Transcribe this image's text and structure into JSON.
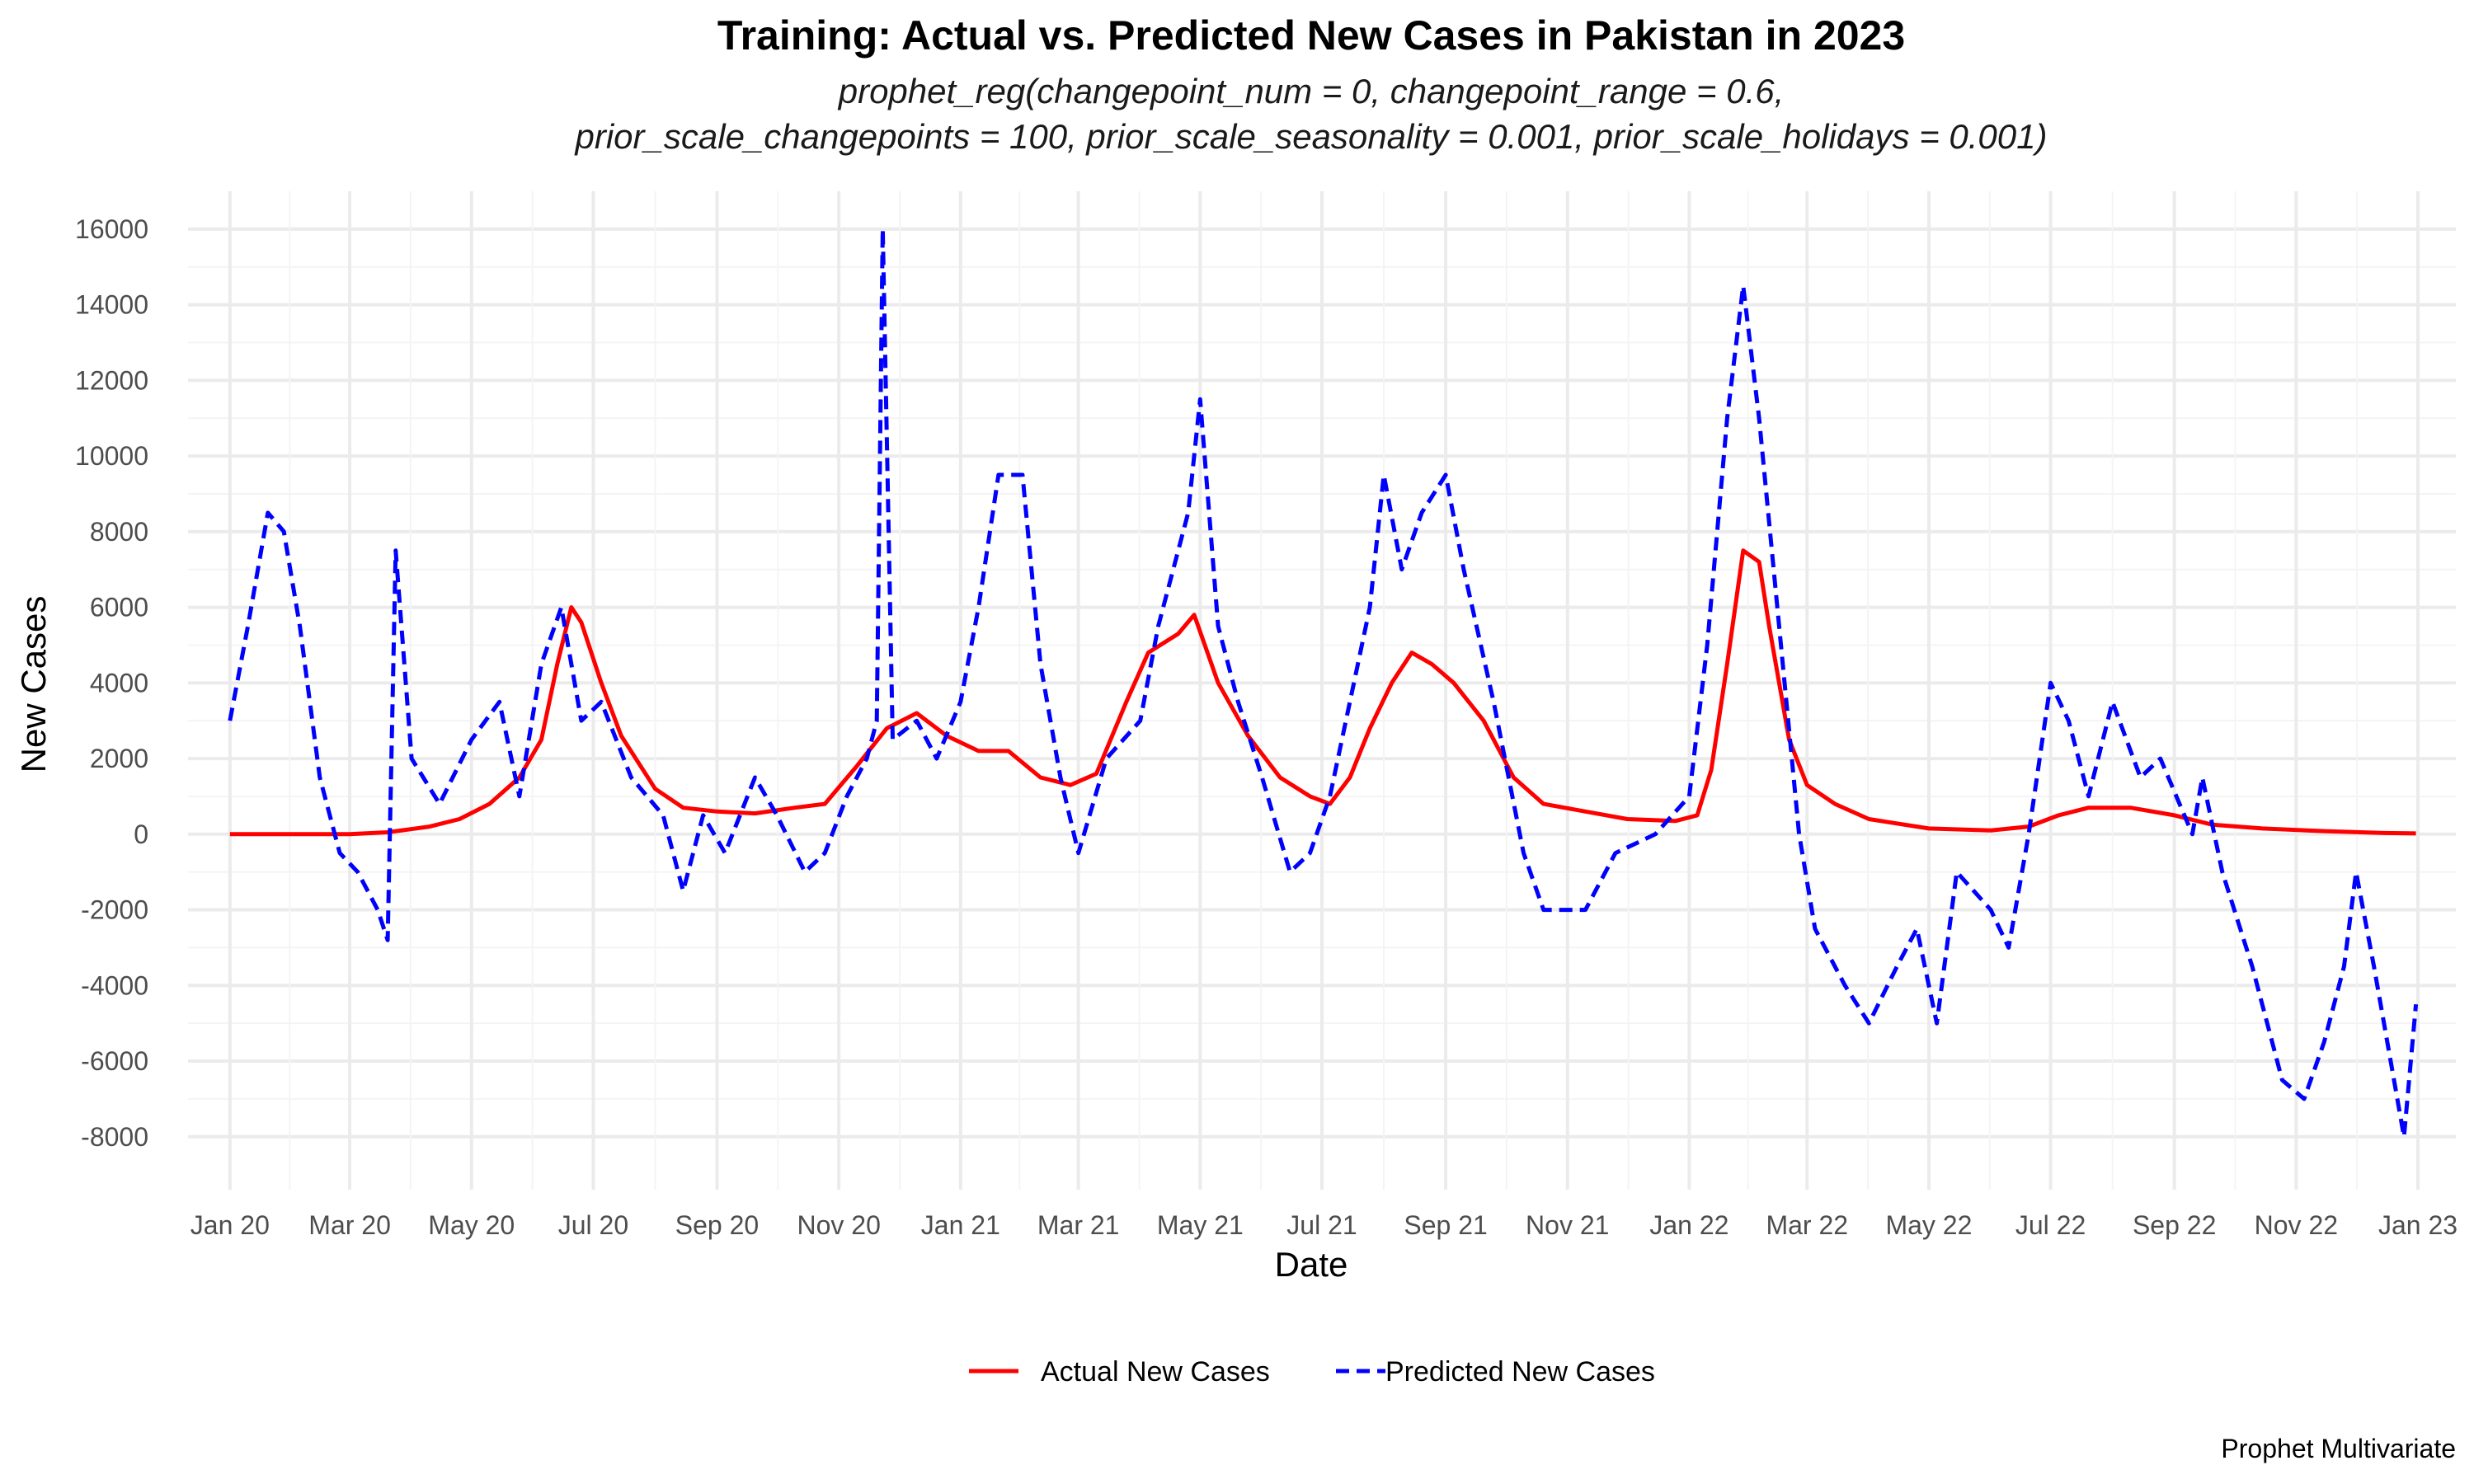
{
  "chart_data": {
    "type": "line",
    "title": "Training: Actual vs. Predicted New Cases in Pakistan in 2023",
    "subtitle_lines": [
      "prophet_reg(changepoint_num = 0, changepoint_range = 0.6,",
      "prior_scale_changepoints = 100, prior_scale_seasonality = 0.001, prior_scale_holidays = 0.001)"
    ],
    "xlabel": "Date",
    "ylabel": "New Cases",
    "caption": "Prophet Multivariate",
    "x_ticks": [
      "Jan 20",
      "Mar 20",
      "May 20",
      "Jul 20",
      "Sep 20",
      "Nov 20",
      "Jan 21",
      "Mar 21",
      "May 21",
      "Jul 21",
      "Sep 21",
      "Nov 21",
      "Jan 22",
      "Mar 22",
      "May 22",
      "Jul 22",
      "Sep 22",
      "Nov 22",
      "Jan 23"
    ],
    "y_ticks": [
      -8000,
      -6000,
      -4000,
      -2000,
      0,
      2000,
      4000,
      6000,
      8000,
      10000,
      12000,
      14000,
      16000
    ],
    "xlim": [
      "2019-12-11",
      "2023-01-20"
    ],
    "ylim": [
      -9400,
      17000
    ],
    "grid": true,
    "legend_position": "bottom",
    "series": [
      {
        "name": "Actual New Cases",
        "color": "#ff0000",
        "dash": "solid",
        "points": [
          [
            "2020-01-01",
            0
          ],
          [
            "2020-02-01",
            0
          ],
          [
            "2020-03-01",
            0
          ],
          [
            "2020-03-20",
            50
          ],
          [
            "2020-04-10",
            200
          ],
          [
            "2020-04-25",
            400
          ],
          [
            "2020-05-10",
            800
          ],
          [
            "2020-05-25",
            1500
          ],
          [
            "2020-06-05",
            2500
          ],
          [
            "2020-06-13",
            4500
          ],
          [
            "2020-06-20",
            6000
          ],
          [
            "2020-06-25",
            5600
          ],
          [
            "2020-07-05",
            4000
          ],
          [
            "2020-07-15",
            2600
          ],
          [
            "2020-08-01",
            1200
          ],
          [
            "2020-08-15",
            700
          ],
          [
            "2020-09-01",
            600
          ],
          [
            "2020-09-20",
            550
          ],
          [
            "2020-10-10",
            700
          ],
          [
            "2020-10-25",
            800
          ],
          [
            "2020-11-10",
            1800
          ],
          [
            "2020-11-25",
            2800
          ],
          [
            "2020-12-10",
            3200
          ],
          [
            "2020-12-25",
            2600
          ],
          [
            "2021-01-10",
            2200
          ],
          [
            "2021-01-25",
            2200
          ],
          [
            "2021-02-10",
            1500
          ],
          [
            "2021-02-25",
            1300
          ],
          [
            "2021-03-10",
            1600
          ],
          [
            "2021-03-25",
            3500
          ],
          [
            "2021-04-05",
            4800
          ],
          [
            "2021-04-20",
            5300
          ],
          [
            "2021-04-28",
            5800
          ],
          [
            "2021-05-10",
            4000
          ],
          [
            "2021-05-25",
            2600
          ],
          [
            "2021-06-10",
            1500
          ],
          [
            "2021-06-25",
            1000
          ],
          [
            "2021-07-05",
            800
          ],
          [
            "2021-07-15",
            1500
          ],
          [
            "2021-07-25",
            2800
          ],
          [
            "2021-08-05",
            4000
          ],
          [
            "2021-08-15",
            4800
          ],
          [
            "2021-08-25",
            4500
          ],
          [
            "2021-09-05",
            4000
          ],
          [
            "2021-09-20",
            3000
          ],
          [
            "2021-10-05",
            1500
          ],
          [
            "2021-10-20",
            800
          ],
          [
            "2021-11-10",
            600
          ],
          [
            "2021-12-01",
            400
          ],
          [
            "2021-12-25",
            350
          ],
          [
            "2022-01-05",
            500
          ],
          [
            "2022-01-12",
            1700
          ],
          [
            "2022-01-20",
            4500
          ],
          [
            "2022-01-28",
            7500
          ],
          [
            "2022-02-05",
            7200
          ],
          [
            "2022-02-10",
            5500
          ],
          [
            "2022-02-20",
            2500
          ],
          [
            "2022-03-01",
            1300
          ],
          [
            "2022-03-15",
            800
          ],
          [
            "2022-04-01",
            400
          ],
          [
            "2022-05-01",
            150
          ],
          [
            "2022-06-01",
            100
          ],
          [
            "2022-06-20",
            200
          ],
          [
            "2022-07-05",
            500
          ],
          [
            "2022-07-20",
            700
          ],
          [
            "2022-08-10",
            700
          ],
          [
            "2022-09-01",
            500
          ],
          [
            "2022-09-20",
            250
          ],
          [
            "2022-10-15",
            150
          ],
          [
            "2022-11-15",
            80
          ],
          [
            "2022-12-15",
            30
          ],
          [
            "2022-12-31",
            20
          ]
        ]
      },
      {
        "name": "Predicted New Cases",
        "color": "#0000ff",
        "dash": "dashed",
        "points": [
          [
            "2020-01-01",
            3000
          ],
          [
            "2020-01-10",
            5500
          ],
          [
            "2020-01-20",
            8500
          ],
          [
            "2020-01-28",
            8000
          ],
          [
            "2020-02-05",
            5500
          ],
          [
            "2020-02-15",
            1500
          ],
          [
            "2020-02-25",
            -500
          ],
          [
            "2020-03-05",
            -1000
          ],
          [
            "2020-03-15",
            -2000
          ],
          [
            "2020-03-20",
            -2800
          ],
          [
            "2020-03-24",
            7500
          ],
          [
            "2020-04-01",
            2000
          ],
          [
            "2020-04-15",
            800
          ],
          [
            "2020-05-01",
            2500
          ],
          [
            "2020-05-15",
            3500
          ],
          [
            "2020-05-25",
            1000
          ],
          [
            "2020-06-05",
            4500
          ],
          [
            "2020-06-15",
            6000
          ],
          [
            "2020-06-25",
            3000
          ],
          [
            "2020-07-05",
            3500
          ],
          [
            "2020-07-20",
            1500
          ],
          [
            "2020-08-05",
            500
          ],
          [
            "2020-08-15",
            -1500
          ],
          [
            "2020-08-25",
            500
          ],
          [
            "2020-09-05",
            -500
          ],
          [
            "2020-09-20",
            1500
          ],
          [
            "2020-10-01",
            500
          ],
          [
            "2020-10-15",
            -1000
          ],
          [
            "2020-10-25",
            -500
          ],
          [
            "2020-11-05",
            1000
          ],
          [
            "2020-11-15",
            2000
          ],
          [
            "2020-11-20",
            3000
          ],
          [
            "2020-11-23",
            16000
          ],
          [
            "2020-11-28",
            2500
          ],
          [
            "2020-12-10",
            3000
          ],
          [
            "2020-12-20",
            2000
          ],
          [
            "2021-01-01",
            3500
          ],
          [
            "2021-01-10",
            6000
          ],
          [
            "2021-01-20",
            9500
          ],
          [
            "2021-02-01",
            9500
          ],
          [
            "2021-02-10",
            4500
          ],
          [
            "2021-02-20",
            1500
          ],
          [
            "2021-03-01",
            -500
          ],
          [
            "2021-03-15",
            2000
          ],
          [
            "2021-04-01",
            3000
          ],
          [
            "2021-04-10",
            5500
          ],
          [
            "2021-04-25",
            8500
          ],
          [
            "2021-05-01",
            11500
          ],
          [
            "2021-05-10",
            5500
          ],
          [
            "2021-05-20",
            3500
          ],
          [
            "2021-06-01",
            1500
          ],
          [
            "2021-06-15",
            -1000
          ],
          [
            "2021-06-25",
            -500
          ],
          [
            "2021-07-05",
            1000
          ],
          [
            "2021-07-15",
            3500
          ],
          [
            "2021-07-25",
            6000
          ],
          [
            "2021-08-01",
            9500
          ],
          [
            "2021-08-10",
            7000
          ],
          [
            "2021-08-20",
            8500
          ],
          [
            "2021-09-01",
            9500
          ],
          [
            "2021-09-10",
            7000
          ],
          [
            "2021-09-25",
            3500
          ],
          [
            "2021-10-10",
            -500
          ],
          [
            "2021-10-20",
            -2000
          ],
          [
            "2021-11-10",
            -2000
          ],
          [
            "2021-11-25",
            -500
          ],
          [
            "2021-12-15",
            0
          ],
          [
            "2022-01-01",
            1000
          ],
          [
            "2022-01-10",
            5000
          ],
          [
            "2022-01-20",
            11000
          ],
          [
            "2022-01-28",
            14500
          ],
          [
            "2022-02-05",
            11000
          ],
          [
            "2022-02-15",
            5500
          ],
          [
            "2022-02-25",
            0
          ],
          [
            "2022-03-05",
            -2500
          ],
          [
            "2022-03-20",
            -4000
          ],
          [
            "2022-04-01",
            -5000
          ],
          [
            "2022-04-15",
            -3500
          ],
          [
            "2022-04-25",
            -2500
          ],
          [
            "2022-05-05",
            -5000
          ],
          [
            "2022-05-15",
            -1000
          ],
          [
            "2022-06-01",
            -2000
          ],
          [
            "2022-06-10",
            -3000
          ],
          [
            "2022-06-20",
            0
          ],
          [
            "2022-07-01",
            4000
          ],
          [
            "2022-07-10",
            3000
          ],
          [
            "2022-07-20",
            1000
          ],
          [
            "2022-08-01",
            3500
          ],
          [
            "2022-08-15",
            1500
          ],
          [
            "2022-08-25",
            2000
          ],
          [
            "2022-09-10",
            0
          ],
          [
            "2022-09-15",
            1500
          ],
          [
            "2022-09-25",
            -1000
          ],
          [
            "2022-10-10",
            -3500
          ],
          [
            "2022-10-25",
            -6500
          ],
          [
            "2022-11-05",
            -7000
          ],
          [
            "2022-11-15",
            -5500
          ],
          [
            "2022-11-25",
            -3500
          ],
          [
            "2022-12-01",
            -1000
          ],
          [
            "2022-12-10",
            -3500
          ],
          [
            "2022-12-20",
            -6500
          ],
          [
            "2022-12-25",
            -8000
          ],
          [
            "2022-12-31",
            -4500
          ]
        ]
      }
    ]
  }
}
